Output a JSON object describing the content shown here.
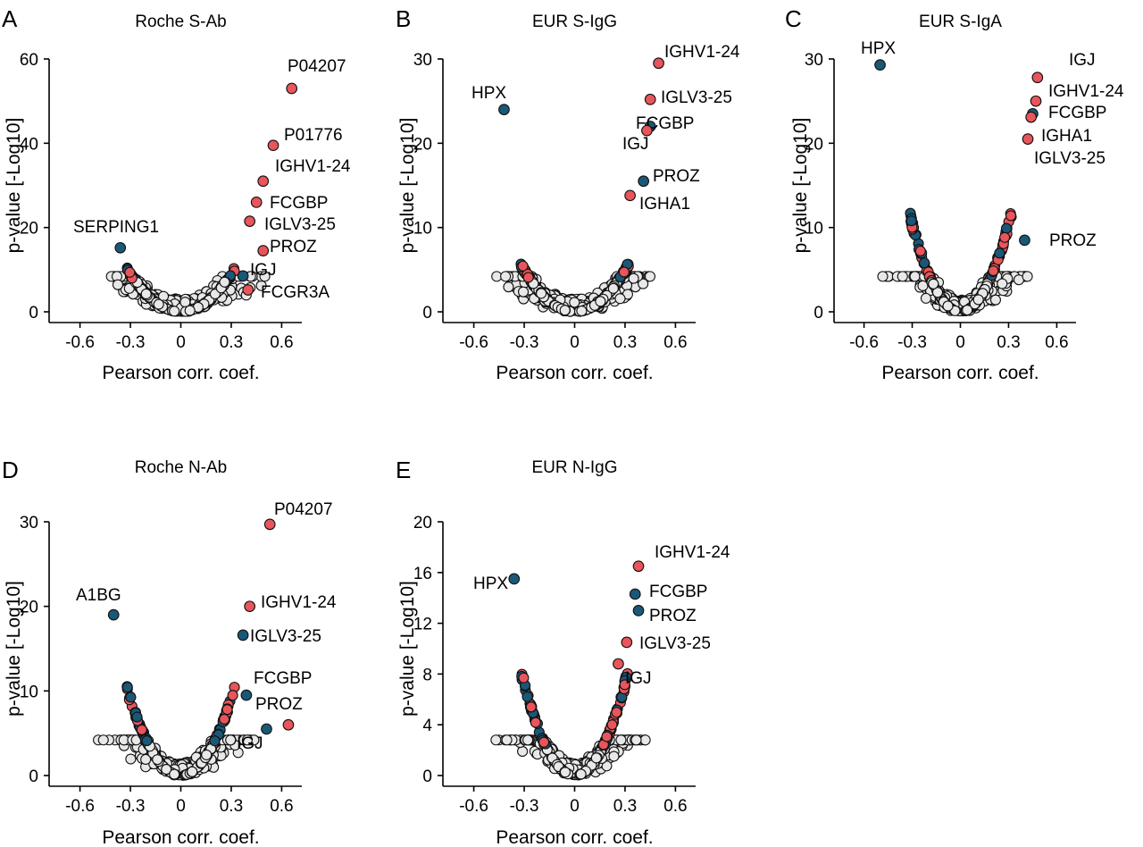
{
  "colors": {
    "positive": "#e8555b",
    "negative": "#1b5878",
    "nonsig": "#e8e8e8",
    "axis": "#000000"
  },
  "chart_data": [
    {
      "type": "scatter",
      "panel": "A",
      "title": "Roche S-Ab",
      "xlabel": "Pearson corr. coef.",
      "ylabel": "p-value [-Log10]",
      "xlim": [
        -0.72,
        0.72
      ],
      "ylim": [
        0,
        60
      ],
      "xticks": [
        -0.6,
        -0.3,
        0,
        0.3,
        0.6
      ],
      "xtick_labels": [
        "-0.6",
        "-0.3",
        "0",
        "0.3",
        "0.6"
      ],
      "yticks": [
        0,
        20,
        40,
        60
      ],
      "ytick_labels": [
        "0",
        "20",
        "40",
        "60"
      ],
      "curve_scale": 100,
      "highlights": [
        {
          "label": "P04207",
          "x": 0.66,
          "y": 53,
          "group": "red"
        },
        {
          "label": "P01776",
          "x": 0.55,
          "y": 39.5,
          "group": "red"
        },
        {
          "label": "IGHV1-24",
          "x": 0.49,
          "y": 31,
          "group": "red"
        },
        {
          "label": "FCGBP",
          "x": 0.45,
          "y": 26,
          "group": "red"
        },
        {
          "label": "IGLV3-25",
          "x": 0.41,
          "y": 21.5,
          "group": "red"
        },
        {
          "label": "PROZ",
          "x": 0.49,
          "y": 14.5,
          "group": "red"
        },
        {
          "label": "IGJ",
          "x": 0.37,
          "y": 8.5,
          "group": "blue"
        },
        {
          "label": "FCGR3A",
          "x": 0.4,
          "y": 5.2,
          "group": "red"
        },
        {
          "label": "SERPING1",
          "x": -0.36,
          "y": 15.2,
          "group": "blue"
        }
      ]
    },
    {
      "type": "scatter",
      "panel": "B",
      "title": "EUR S-IgG",
      "xlabel": "Pearson corr. coef.",
      "ylabel": "p-value [-Log10]",
      "xlim": [
        -0.72,
        0.72
      ],
      "ylim": [
        0,
        30
      ],
      "xticks": [
        -0.6,
        -0.3,
        0,
        0.3,
        0.6
      ],
      "xtick_labels": [
        "-0.6",
        "-0.3",
        "0",
        "0.3",
        "0.6"
      ],
      "yticks": [
        0,
        10,
        20,
        30
      ],
      "ytick_labels": [
        "0",
        "10",
        "20",
        "30"
      ],
      "curve_scale": 55,
      "highlights": [
        {
          "label": "IGHV1-24",
          "x": 0.5,
          "y": 29.5,
          "group": "red"
        },
        {
          "label": "IGLV3-25",
          "x": 0.45,
          "y": 25.2,
          "group": "red"
        },
        {
          "label": "FCGBP",
          "x": 0.45,
          "y": 22,
          "group": "blue"
        },
        {
          "label": "IGJ",
          "x": 0.43,
          "y": 21.5,
          "group": "red"
        },
        {
          "label": "PROZ",
          "x": 0.41,
          "y": 15.5,
          "group": "blue"
        },
        {
          "label": "IGHA1",
          "x": 0.33,
          "y": 13.8,
          "group": "red"
        },
        {
          "label": "HPX",
          "x": -0.42,
          "y": 24,
          "group": "blue"
        }
      ]
    },
    {
      "type": "scatter",
      "panel": "C",
      "title": "EUR S-IgA",
      "xlabel": "Pearson corr. coef.",
      "ylabel": "p-value [-Log10]",
      "xlim": [
        -0.72,
        0.72
      ],
      "ylim": [
        0,
        30
      ],
      "xticks": [
        -0.6,
        -0.3,
        0,
        0.3,
        0.6
      ],
      "xtick_labels": [
        "-0.6",
        "-0.3",
        "0",
        "0.3",
        "0.6"
      ],
      "yticks": [
        0,
        10,
        20,
        30
      ],
      "ytick_labels": [
        "0",
        "10",
        "20",
        "30"
      ],
      "curve_scale": 115,
      "highlights": [
        {
          "label": "IGJ",
          "x": 0.48,
          "y": 27.8,
          "group": "red"
        },
        {
          "label": "IGHV1-24",
          "x": 0.47,
          "y": 25,
          "group": "red"
        },
        {
          "label": "FCGBP",
          "x": 0.45,
          "y": 23.5,
          "group": "blue"
        },
        {
          "label": "IGHA1",
          "x": 0.44,
          "y": 23.1,
          "group": "red"
        },
        {
          "label": "IGLV3-25",
          "x": 0.42,
          "y": 20.5,
          "group": "red"
        },
        {
          "label": "PROZ",
          "x": 0.4,
          "y": 8.5,
          "group": "blue"
        },
        {
          "label": "HPX",
          "x": -0.5,
          "y": 29.3,
          "group": "blue"
        }
      ]
    },
    {
      "type": "scatter",
      "panel": "D",
      "title": "Roche N-Ab",
      "xlabel": "Pearson corr. coef.",
      "ylabel": "p-value [-Log10]",
      "xlim": [
        -0.72,
        0.72
      ],
      "ylim": [
        0,
        30
      ],
      "xticks": [
        -0.6,
        -0.3,
        0,
        0.3,
        0.6
      ],
      "xtick_labels": [
        "-0.6",
        "-0.3",
        "0",
        "0.3",
        "0.6"
      ],
      "yticks": [
        0,
        10,
        20,
        30
      ],
      "ytick_labels": [
        "0",
        "10",
        "20",
        "30"
      ],
      "curve_scale": 100,
      "highlights": [
        {
          "label": "P04207",
          "x": 0.53,
          "y": 29.7,
          "group": "red"
        },
        {
          "label": "IGHV1-24",
          "x": 0.41,
          "y": 20,
          "group": "red"
        },
        {
          "label": "IGLV3-25",
          "x": 0.37,
          "y": 16.6,
          "group": "blue"
        },
        {
          "label": "FCGBP",
          "x": 0.39,
          "y": 9.5,
          "group": "blue"
        },
        {
          "label": "PROZ",
          "x": 0.64,
          "y": 6,
          "group": "red"
        },
        {
          "label": "IGJ",
          "x": 0.51,
          "y": 5.5,
          "group": "blue"
        },
        {
          "label": "A1BG",
          "x": -0.4,
          "y": 19,
          "group": "blue"
        }
      ]
    },
    {
      "type": "scatter",
      "panel": "E",
      "title": "EUR N-IgG",
      "xlabel": "Pearson corr. coef.",
      "ylabel": "p-value [-Log10]",
      "xlim": [
        -0.72,
        0.72
      ],
      "ylim": [
        0,
        20
      ],
      "xticks": [
        -0.6,
        -0.3,
        0,
        0.3,
        0.6
      ],
      "xtick_labels": [
        "-0.6",
        "-0.3",
        "0",
        "0.3",
        "0.6"
      ],
      "yticks": [
        0,
        4,
        8,
        12,
        16,
        20
      ],
      "ytick_labels": [
        "0",
        "4",
        "8",
        "12",
        "16",
        "20"
      ],
      "curve_scale": 80,
      "highlights": [
        {
          "label": "IGHV1-24",
          "x": 0.38,
          "y": 16.5,
          "group": "red"
        },
        {
          "label": "FCGBP",
          "x": 0.36,
          "y": 14.3,
          "group": "blue"
        },
        {
          "label": "PROZ",
          "x": 0.38,
          "y": 13,
          "group": "blue"
        },
        {
          "label": "IGLV3-25",
          "x": 0.31,
          "y": 10.5,
          "group": "red"
        },
        {
          "label": "IGJ",
          "x": 0.26,
          "y": 8.8,
          "group": "red"
        },
        {
          "label": "HPX",
          "x": -0.36,
          "y": 15.5,
          "group": "blue"
        }
      ]
    }
  ]
}
